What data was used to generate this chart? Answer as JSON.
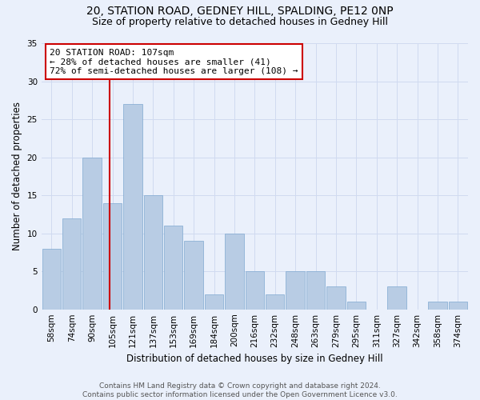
{
  "title": "20, STATION ROAD, GEDNEY HILL, SPALDING, PE12 0NP",
  "subtitle": "Size of property relative to detached houses in Gedney Hill",
  "xlabel": "Distribution of detached houses by size in Gedney Hill",
  "ylabel": "Number of detached properties",
  "categories": [
    "58sqm",
    "74sqm",
    "90sqm",
    "105sqm",
    "121sqm",
    "137sqm",
    "153sqm",
    "169sqm",
    "184sqm",
    "200sqm",
    "216sqm",
    "232sqm",
    "248sqm",
    "263sqm",
    "279sqm",
    "295sqm",
    "311sqm",
    "327sqm",
    "342sqm",
    "358sqm",
    "374sqm"
  ],
  "values": [
    8,
    12,
    20,
    14,
    27,
    15,
    11,
    9,
    2,
    10,
    5,
    2,
    5,
    5,
    3,
    1,
    0,
    3,
    0,
    1,
    1
  ],
  "bar_color": "#b8cce4",
  "bar_edge_color": "#7fa8d0",
  "subject_line_color": "#cc0000",
  "annotation_line1": "20 STATION ROAD: 107sqm",
  "annotation_line2": "← 28% of detached houses are smaller (41)",
  "annotation_line3": "72% of semi-detached houses are larger (108) →",
  "annotation_box_color": "#ffffff",
  "annotation_box_edge_color": "#cc0000",
  "ylim": [
    0,
    35
  ],
  "yticks": [
    0,
    5,
    10,
    15,
    20,
    25,
    30,
    35
  ],
  "footnote": "Contains HM Land Registry data © Crown copyright and database right 2024.\nContains public sector information licensed under the Open Government Licence v3.0.",
  "background_color": "#eaf0fb",
  "grid_color": "#d0daf0",
  "title_fontsize": 10,
  "subtitle_fontsize": 9,
  "label_fontsize": 8.5,
  "tick_fontsize": 7.5,
  "annotation_fontsize": 8,
  "footnote_fontsize": 6.5
}
